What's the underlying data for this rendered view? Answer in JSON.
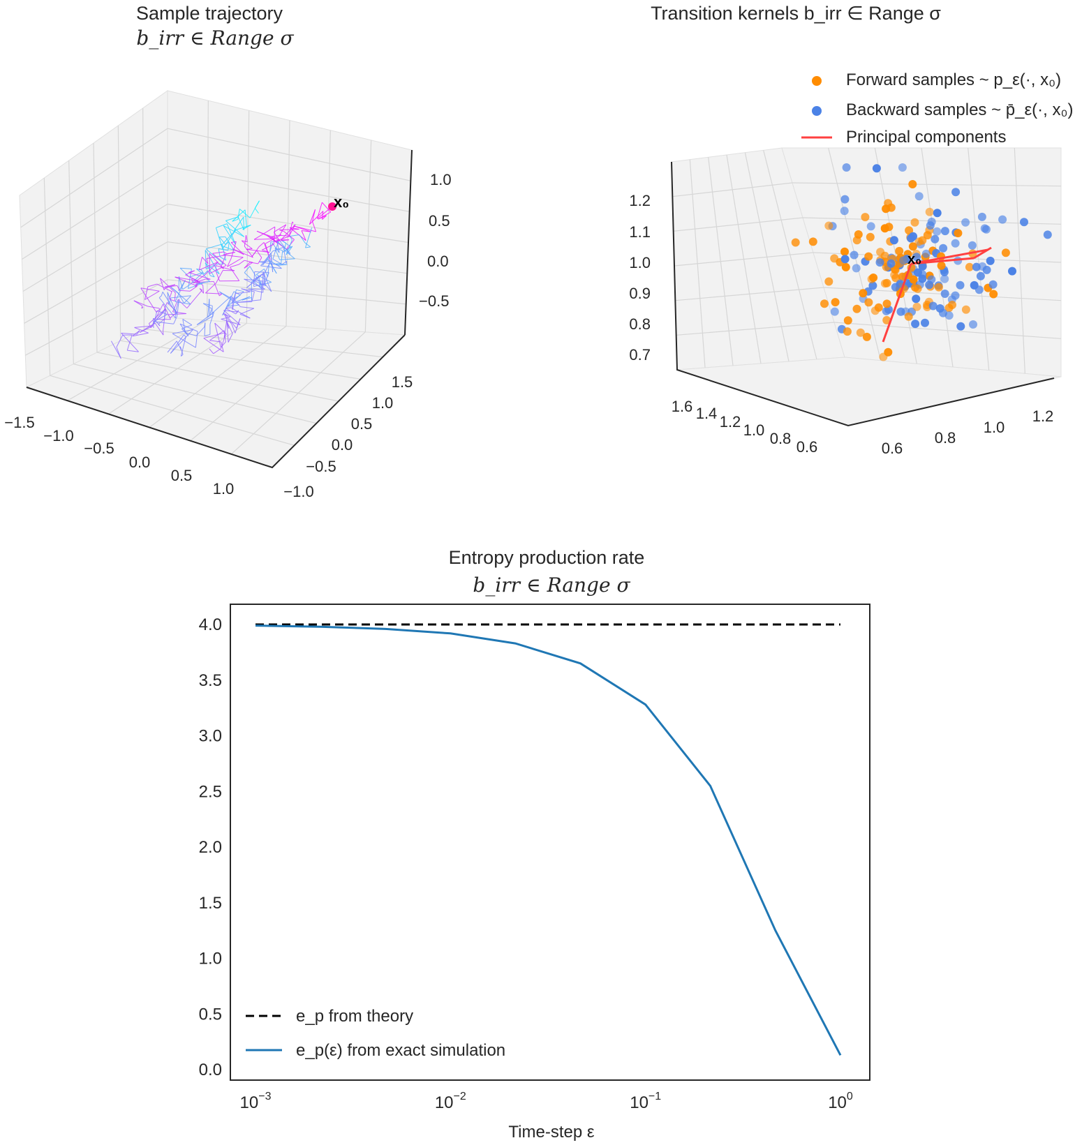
{
  "figure": {
    "panel_a": {
      "title": "Sample trajectory",
      "subtitle": "b_irr ∈ Range σ",
      "x_ticks": [
        "−1.5",
        "−1.0",
        "−0.5",
        "0.0",
        "0.5",
        "1.0"
      ],
      "y_ticks": [
        "−1.0",
        "−0.5",
        "0.0",
        "0.5",
        "1.0",
        "1.5"
      ],
      "z_ticks": [
        "1.0",
        "0.5",
        "0.0",
        "−0.5"
      ],
      "start_label": "x₀",
      "colors": {
        "start": "#ff00ff",
        "end": "#00ffff",
        "mid": "#8a6cf5"
      }
    },
    "panel_b": {
      "title": "Transition kernels b_irr ∈ Range σ",
      "legend": [
        {
          "label": "Forward samples  ~ p_ε(·, x₀)",
          "color": "#ff8c00",
          "marker": "dot"
        },
        {
          "label": "Backward samples  ~ p̄_ε(·, x₀)",
          "color": "#4b82e6",
          "marker": "dot"
        },
        {
          "label": "Principal components",
          "color": "#ff4040",
          "marker": "line"
        }
      ],
      "x_ticks": [
        "1.6",
        "1.4",
        "1.2",
        "1.0",
        "0.8",
        "0.6"
      ],
      "y_ticks": [
        "0.6",
        "0.8",
        "1.0",
        "1.2"
      ],
      "z_ticks": [
        "1.2",
        "1.1",
        "1.0",
        "0.9",
        "0.8",
        "0.7"
      ],
      "center_label": "x₀"
    },
    "panel_c": {
      "title": "Entropy production rate",
      "subtitle": "b_irr ∈ Range σ",
      "xlabel": "Time-step ε",
      "x_ticks": [
        {
          "base": "10",
          "exp": "−3"
        },
        {
          "base": "10",
          "exp": "−2"
        },
        {
          "base": "10",
          "exp": "−1"
        },
        {
          "base": "10",
          "exp": "0"
        }
      ],
      "y_ticks": [
        "0.0",
        "0.5",
        "1.0",
        "1.5",
        "2.0",
        "2.5",
        "3.0",
        "3.5",
        "4.0"
      ],
      "legend": [
        {
          "label": "e_p from theory",
          "style": "dashed",
          "color": "#000000"
        },
        {
          "label": "e_p(ε) from exact simulation",
          "style": "solid",
          "color": "#1f77b4"
        }
      ]
    }
  },
  "chart_data": [
    {
      "type": "scatter",
      "title": "Sample trajectory b_irr ∈ Range σ",
      "subtype": "3d-trajectory",
      "xlim": [
        -1.5,
        1.0
      ],
      "ylim": [
        -1.0,
        1.5
      ],
      "zlim": [
        -0.5,
        1.0
      ],
      "start": {
        "label": "x₀",
        "x": 1.0,
        "y": 1.0,
        "z": 1.0
      }
    },
    {
      "type": "scatter",
      "title": "Transition kernels b_irr ∈ Range σ",
      "subtype": "3d-scatter",
      "xlim": [
        0.6,
        1.6
      ],
      "ylim": [
        0.6,
        1.2
      ],
      "zlim": [
        0.7,
        1.2
      ],
      "center": {
        "label": "x₀",
        "x": 1.0,
        "y": 1.0,
        "z": 1.0
      },
      "series": [
        {
          "name": "Forward samples  ~ p_ε(·, x₀)",
          "color": "#ff8c00",
          "n_points": 100
        },
        {
          "name": "Backward samples  ~ p̄_ε(·, x₀)",
          "color": "#4b82e6",
          "n_points": 100
        },
        {
          "name": "Principal components",
          "color": "#ff4040"
        }
      ]
    },
    {
      "type": "line",
      "title": "Entropy production rate b_irr ∈ Range σ",
      "xlabel": "Time-step ε",
      "ylabel": "",
      "xscale": "log",
      "xlim": [
        0.001,
        1.0
      ],
      "ylim": [
        0.0,
        4.0
      ],
      "grid": false,
      "legend_position": "bottom-left",
      "series": [
        {
          "name": "e_p from theory",
          "style": "dashed",
          "color": "#000000",
          "x": [
            0.001,
            1.0
          ],
          "y": [
            4.0,
            4.0
          ]
        },
        {
          "name": "e_p(ε) from exact simulation",
          "style": "solid",
          "color": "#1f77b4",
          "x": [
            0.001,
            0.00215,
            0.00464,
            0.01,
            0.0215,
            0.0464,
            0.1,
            0.215,
            0.464,
            1.0
          ],
          "y": [
            3.99,
            3.98,
            3.96,
            3.92,
            3.83,
            3.65,
            3.28,
            2.55,
            1.25,
            0.13
          ]
        }
      ]
    }
  ]
}
